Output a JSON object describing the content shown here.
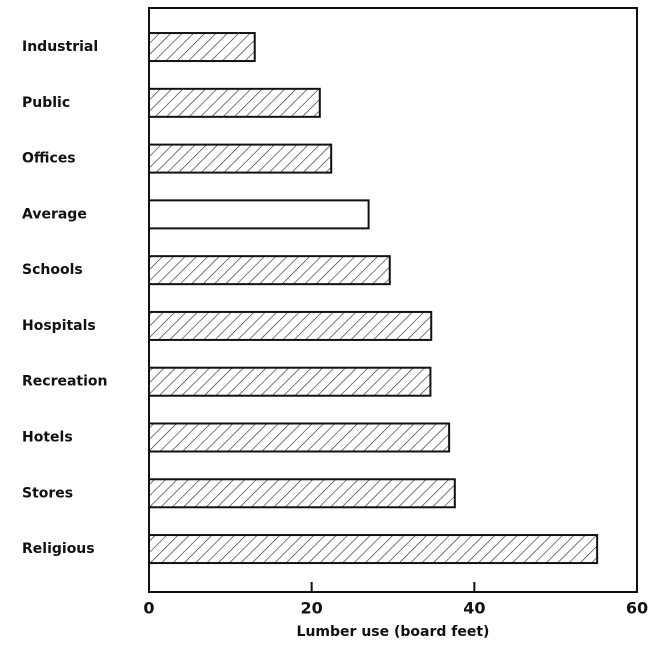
{
  "chart_data": {
    "type": "barh",
    "categories": [
      "Industrial",
      "Public",
      "Offices",
      "Average",
      "Schools",
      "Hospitals",
      "Recreation",
      "Hotels",
      "Stores",
      "Religious"
    ],
    "values": [
      13,
      21,
      22.4,
      27,
      29.6,
      34.7,
      34.6,
      36.9,
      37.6,
      55.1
    ],
    "hatch": [
      true,
      true,
      true,
      false,
      true,
      true,
      true,
      true,
      true,
      true
    ],
    "color": "#111111",
    "xlabel": "Lumber use (board feet)",
    "xlim": [
      0,
      60
    ],
    "xticks": [
      0,
      20,
      40,
      60
    ],
    "grid": false
  }
}
